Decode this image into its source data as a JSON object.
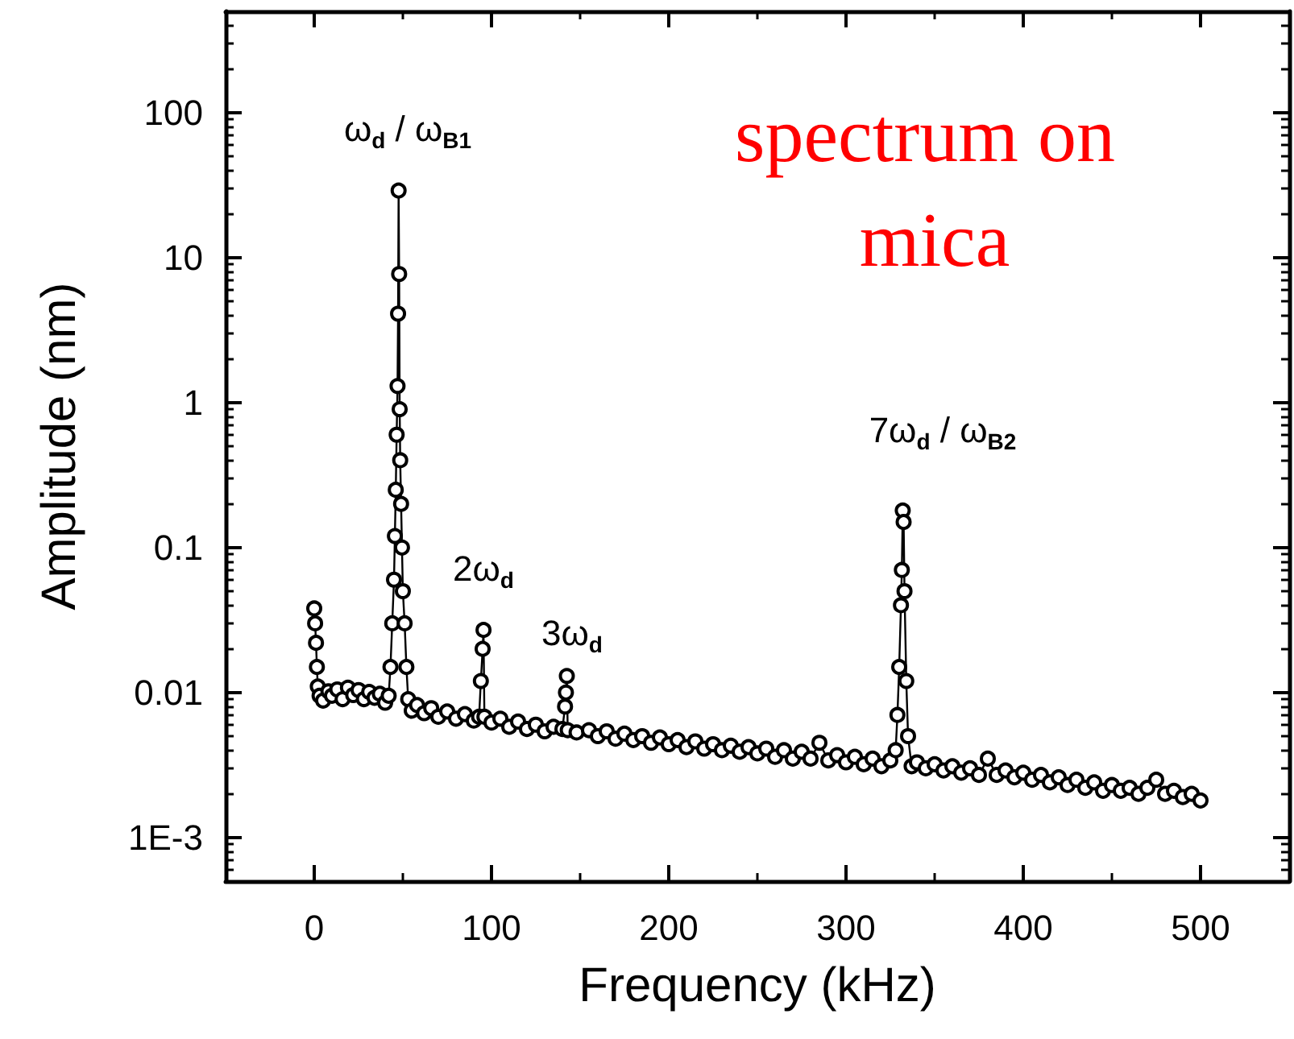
{
  "chart_data": {
    "type": "line",
    "xlabel": "Frequency (kHz)",
    "ylabel": "Amplitude (nm)",
    "x": [
      0,
      0.5,
      1,
      1.5,
      2,
      3,
      5,
      8,
      10,
      13,
      16,
      19,
      22,
      25,
      28,
      31,
      34,
      37,
      40,
      42,
      43,
      44,
      45,
      45.5,
      46,
      46.5,
      47,
      47.3,
      47.6,
      47.9,
      48.2,
      48.5,
      49,
      49.5,
      50,
      51,
      52,
      53,
      55,
      58,
      62,
      66,
      70,
      75,
      80,
      85,
      90,
      93,
      94,
      95,
      95.5,
      96,
      100,
      105,
      110,
      115,
      120,
      125,
      130,
      135,
      140,
      141.5,
      142,
      142.5,
      143,
      148,
      155,
      160,
      165,
      170,
      175,
      180,
      185,
      190,
      195,
      200,
      205,
      210,
      215,
      220,
      225,
      230,
      235,
      240,
      245,
      250,
      255,
      260,
      265,
      270,
      275,
      280,
      285,
      290,
      295,
      300,
      305,
      310,
      315,
      320,
      325,
      328,
      329,
      330,
      331,
      331.5,
      332,
      332.5,
      333,
      334,
      335,
      337,
      340,
      345,
      350,
      355,
      360,
      365,
      370,
      375,
      380,
      385,
      390,
      395,
      400,
      405,
      410,
      415,
      420,
      425,
      430,
      435,
      440,
      445,
      450,
      455,
      460,
      465,
      470,
      475,
      480,
      485,
      490,
      495,
      500
    ],
    "series": [
      {
        "color": "#000000",
        "values": [
          0.038,
          0.03,
          0.022,
          0.015,
          0.011,
          0.0095,
          0.0088,
          0.0102,
          0.0095,
          0.0105,
          0.009,
          0.0108,
          0.0096,
          0.0104,
          0.009,
          0.0101,
          0.0092,
          0.0098,
          0.0085,
          0.0095,
          0.015,
          0.03,
          0.06,
          0.12,
          0.25,
          0.6,
          1.3,
          4.1,
          29,
          7.7,
          0.9,
          0.4,
          0.2,
          0.1,
          0.05,
          0.03,
          0.015,
          0.009,
          0.0075,
          0.0082,
          0.0072,
          0.0078,
          0.0068,
          0.0074,
          0.0066,
          0.0071,
          0.0064,
          0.0068,
          0.012,
          0.02,
          0.027,
          0.0068,
          0.0062,
          0.0066,
          0.0058,
          0.0063,
          0.0056,
          0.006,
          0.0054,
          0.0058,
          0.0056,
          0.008,
          0.01,
          0.013,
          0.0055,
          0.0053,
          0.0055,
          0.005,
          0.0054,
          0.0048,
          0.0052,
          0.0047,
          0.005,
          0.0045,
          0.0049,
          0.0044,
          0.0047,
          0.0042,
          0.0046,
          0.0041,
          0.0044,
          0.004,
          0.0043,
          0.0039,
          0.0042,
          0.0038,
          0.0041,
          0.0036,
          0.004,
          0.0035,
          0.0039,
          0.0035,
          0.0045,
          0.0034,
          0.0037,
          0.0033,
          0.0036,
          0.0032,
          0.0035,
          0.0031,
          0.0034,
          0.004,
          0.007,
          0.015,
          0.04,
          0.07,
          0.18,
          0.15,
          0.05,
          0.012,
          0.005,
          0.0031,
          0.0033,
          0.003,
          0.0032,
          0.0029,
          0.0031,
          0.0028,
          0.003,
          0.0027,
          0.0035,
          0.0027,
          0.0029,
          0.0026,
          0.0028,
          0.0025,
          0.0027,
          0.0024,
          0.0026,
          0.0023,
          0.0025,
          0.0022,
          0.0024,
          0.0021,
          0.0023,
          0.0021,
          0.0022,
          0.002,
          0.0022,
          0.0025,
          0.002,
          0.0021,
          0.0019,
          0.002,
          0.0018
        ]
      }
    ],
    "xlim": [
      -50,
      550
    ],
    "xticks": [
      0,
      100,
      200,
      300,
      400,
      500
    ],
    "ylim": [
      0.0005,
      500
    ],
    "yticks": [
      {
        "value": 0.001,
        "label": "1E-3"
      },
      0.01,
      0.1,
      1,
      10,
      100
    ],
    "log": "y",
    "grid": false,
    "marker": "circle",
    "line_style": "solid",
    "annotations": [
      "ω$_{d}$ / ω$_{B1}$",
      "2ω$_{d}$",
      "3ω$_{d}$",
      "7ω$_{d}$ / ω$_{B2}$",
      "spectrum on mica"
    ]
  }
}
